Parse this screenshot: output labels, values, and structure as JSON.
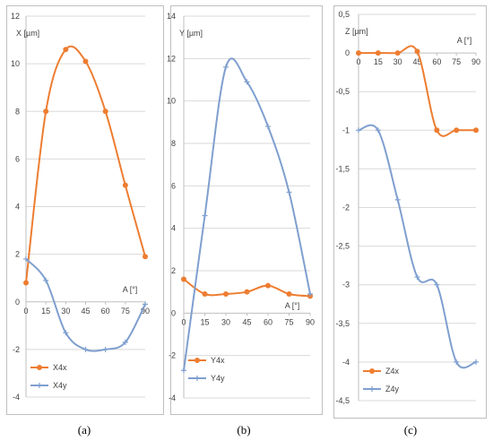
{
  "chart_data": [
    {
      "type": "line",
      "caption": "(a)",
      "ylabel": "X [µm]",
      "xlabel": "A [°]",
      "x": [
        0,
        15,
        30,
        45,
        60,
        75,
        90
      ],
      "xlim": [
        0,
        90
      ],
      "ylim": [
        -4,
        12
      ],
      "yticks": [
        -4,
        -2,
        0,
        2,
        4,
        6,
        8,
        10,
        12
      ],
      "grid": true,
      "legend": "bottom-left",
      "series": [
        {
          "name": "X4x",
          "color": "#ED7D31",
          "marker": "dot",
          "values": [
            0.8,
            8.0,
            10.6,
            10.1,
            8.0,
            4.9,
            1.9
          ]
        },
        {
          "name": "X4y",
          "color": "#7F9FCF",
          "marker": "plus",
          "values": [
            1.8,
            0.9,
            -1.3,
            -2.0,
            -2.0,
            -1.7,
            -0.1
          ]
        }
      ]
    },
    {
      "type": "line",
      "caption": "(b)",
      "ylabel": "Y [µm]",
      "xlabel": "A [°]",
      "x": [
        0,
        15,
        30,
        45,
        60,
        75,
        90
      ],
      "xlim": [
        0,
        90
      ],
      "ylim": [
        -4,
        14
      ],
      "yticks": [
        -4,
        -2,
        0,
        2,
        4,
        6,
        8,
        10,
        12,
        14
      ],
      "grid": true,
      "legend": "bottom-left",
      "series": [
        {
          "name": "Y4x",
          "color": "#ED7D31",
          "marker": "dot",
          "values": [
            1.6,
            0.9,
            0.9,
            1.0,
            1.3,
            0.9,
            0.8
          ]
        },
        {
          "name": "Y4y",
          "color": "#7F9FCF",
          "marker": "plus",
          "values": [
            -2.7,
            4.6,
            11.6,
            10.9,
            8.8,
            5.7,
            0.9
          ]
        }
      ]
    },
    {
      "type": "line",
      "caption": "(c)",
      "ylabel": "Z [µm]",
      "xlabel": "A [°]",
      "x": [
        0,
        15,
        30,
        45,
        60,
        75,
        90
      ],
      "xlim": [
        0,
        90
      ],
      "ylim": [
        -4.5,
        0.5
      ],
      "yticks": [
        -4.5,
        -4,
        -3.5,
        -3,
        -2.5,
        -2,
        -1.5,
        -1,
        -0.5,
        0,
        0.5
      ],
      "grid": true,
      "legend": "bottom-left",
      "series": [
        {
          "name": "Z4x",
          "color": "#ED7D31",
          "marker": "dot",
          "values": [
            0,
            0,
            0,
            0.02,
            -1.0,
            -1.0,
            -1.0
          ]
        },
        {
          "name": "Z4y",
          "color": "#7F9FCF",
          "marker": "plus",
          "values": [
            -1.0,
            -1.0,
            -1.9,
            -2.9,
            -3.0,
            -4.0,
            -4.0
          ]
        }
      ]
    }
  ]
}
